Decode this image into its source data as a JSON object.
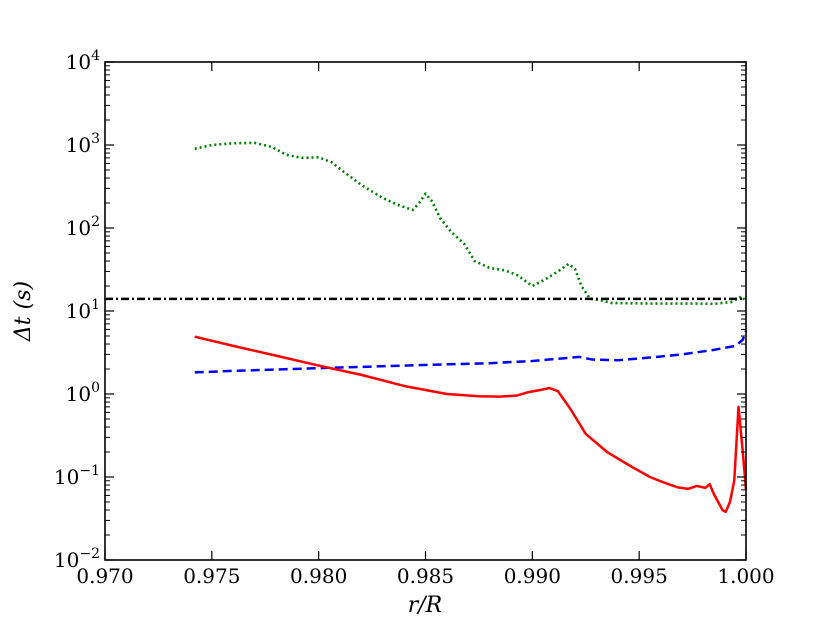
{
  "chart_data": {
    "type": "line",
    "xlabel": "r/R",
    "ylabel": "Δt (s)",
    "xlim": [
      0.97,
      1.0
    ],
    "ylim": [
      0.01,
      10000
    ],
    "yscale": "log",
    "grid": false,
    "x_ticks": [
      "0.970",
      "0.975",
      "0.980",
      "0.985",
      "0.990",
      "0.995",
      "1.000"
    ],
    "y_ticks": [
      {
        "base": "10",
        "exp": "−2"
      },
      {
        "base": "10",
        "exp": "−1"
      },
      {
        "base": "10",
        "exp": "0"
      },
      {
        "base": "10",
        "exp": "1"
      },
      {
        "base": "10",
        "exp": "2"
      },
      {
        "base": "10",
        "exp": "3"
      },
      {
        "base": "10",
        "exp": "4"
      }
    ],
    "series": [
      {
        "style": "dotted",
        "color": "#007f00",
        "x": [
          0.9742,
          0.975,
          0.976,
          0.977,
          0.9778,
          0.9785,
          0.9792,
          0.98,
          0.9806,
          0.9812,
          0.982,
          0.983,
          0.9837,
          0.9844,
          0.9847,
          0.985,
          0.9853,
          0.9857,
          0.9862,
          0.9868,
          0.9873,
          0.988,
          0.9887,
          0.9893,
          0.99,
          0.9906,
          0.9912,
          0.9917,
          0.992,
          0.9923,
          0.9927,
          0.9932,
          0.9937,
          0.9945,
          0.9955,
          0.9965,
          0.9975,
          0.9985,
          0.9993,
          0.9998,
          1.0
        ],
        "y": [
          900,
          1000,
          1050,
          1060,
          950,
          760,
          700,
          710,
          620,
          470,
          330,
          230,
          190,
          165,
          200,
          260,
          210,
          130,
          90,
          65,
          40,
          33,
          31,
          27,
          20,
          24,
          30,
          37,
          32,
          20,
          14,
          13.5,
          12.5,
          12.4,
          12.3,
          12.3,
          12.3,
          12.2,
          12.8,
          15,
          13
        ]
      },
      {
        "style": "dashdot",
        "color": "#000000",
        "x": [
          0.97,
          1.0
        ],
        "y": [
          14,
          14
        ]
      },
      {
        "style": "dashed",
        "color": "#0000ff",
        "x": [
          0.9742,
          0.976,
          0.978,
          0.98,
          0.982,
          0.984,
          0.986,
          0.988,
          0.99,
          0.9915,
          0.9922,
          0.9928,
          0.994,
          0.9955,
          0.997,
          0.9985,
          0.9995,
          0.99985,
          1.0
        ],
        "y": [
          1.82,
          1.9,
          1.97,
          2.05,
          2.12,
          2.2,
          2.28,
          2.35,
          2.5,
          2.7,
          2.8,
          2.6,
          2.55,
          2.75,
          3.0,
          3.4,
          3.8,
          4.5,
          5.8
        ]
      },
      {
        "style": "solid",
        "color": "#ff0000",
        "x": [
          0.9742,
          0.976,
          0.978,
          0.98,
          0.982,
          0.984,
          0.986,
          0.9875,
          0.9885,
          0.9893,
          0.9898,
          0.9904,
          0.9908,
          0.9912,
          0.9918,
          0.9925,
          0.9935,
          0.9945,
          0.9955,
          0.9962,
          0.9968,
          0.9973,
          0.9977,
          0.9981,
          0.9983,
          0.9985,
          0.9987,
          0.9989,
          0.99905,
          0.99925,
          0.99945,
          0.99965,
          0.99985,
          1.0
        ],
        "y": [
          4.9,
          3.8,
          2.9,
          2.2,
          1.7,
          1.25,
          1.0,
          0.94,
          0.93,
          0.96,
          1.05,
          1.12,
          1.18,
          1.08,
          0.65,
          0.33,
          0.2,
          0.14,
          0.1,
          0.085,
          0.075,
          0.072,
          0.078,
          0.074,
          0.082,
          0.062,
          0.05,
          0.04,
          0.038,
          0.05,
          0.09,
          0.7,
          0.2,
          0.07
        ]
      }
    ]
  }
}
